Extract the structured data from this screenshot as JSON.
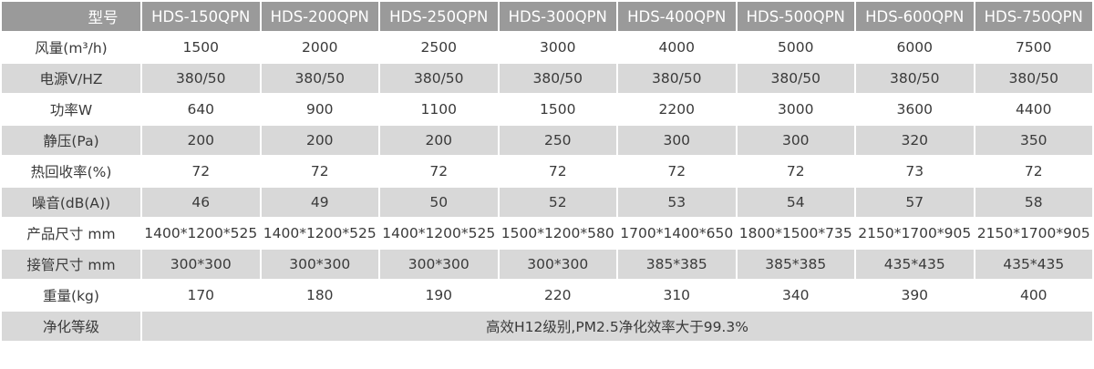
{
  "table": {
    "header_label": "型号",
    "models": [
      "HDS-150QPN",
      "HDS-200QPN",
      "HDS-250QPN",
      "HDS-300QPN",
      "HDS-400QPN",
      "HDS-500QPN",
      "HDS-600QPN",
      "HDS-750QPN"
    ],
    "rows": [
      {
        "label": "风量(m³/h)",
        "values": [
          "1500",
          "2000",
          "2500",
          "3000",
          "4000",
          "5000",
          "6000",
          "7500"
        ]
      },
      {
        "label": "电源V/HZ",
        "values": [
          "380/50",
          "380/50",
          "380/50",
          "380/50",
          "380/50",
          "380/50",
          "380/50",
          "380/50"
        ]
      },
      {
        "label": "功率W",
        "values": [
          "640",
          "900",
          "1100",
          "1500",
          "2200",
          "3000",
          "3600",
          "4400"
        ]
      },
      {
        "label": "静压(Pa)",
        "values": [
          "200",
          "200",
          "200",
          "250",
          "300",
          "300",
          "320",
          "350"
        ]
      },
      {
        "label": "热回收率(%)",
        "values": [
          "72",
          "72",
          "72",
          "72",
          "72",
          "72",
          "73",
          "72"
        ]
      },
      {
        "label": "噪音(dB(A))",
        "values": [
          "46",
          "49",
          "50",
          "52",
          "53",
          "54",
          "57",
          "58"
        ]
      },
      {
        "label": "产品尺寸 mm",
        "values": [
          "1400*1200*525",
          "1400*1200*525",
          "1400*1200*525",
          "1500*1200*580",
          "1700*1400*650",
          "1800*1500*735",
          "2150*1700*905",
          "2150*1700*905"
        ]
      },
      {
        "label": "接管尺寸 mm",
        "values": [
          "300*300",
          "300*300",
          "300*300",
          "300*300",
          "385*385",
          "385*385",
          "435*435",
          "435*435"
        ]
      },
      {
        "label": "重量(kg)",
        "values": [
          "170",
          "180",
          "190",
          "220",
          "310",
          "340",
          "390",
          "400"
        ]
      }
    ],
    "footer": {
      "label": "净化等级",
      "value": "高效H12级别,PM2.5净化效率大于99.3%"
    }
  },
  "colors": {
    "header_bg": "#9a9a9a",
    "stripe_bg": "#d8d8d8",
    "text": "#3a3a3a"
  }
}
